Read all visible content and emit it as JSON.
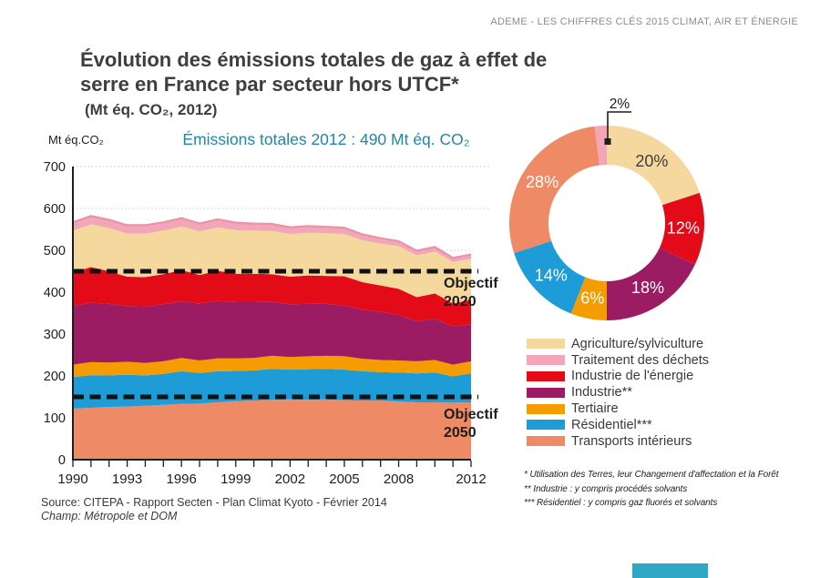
{
  "header": {
    "text": "ADEME - LES CHIFFRES CLÉS 2015 CLIMAT, AIR ET ÉNERGIE"
  },
  "title": {
    "line1": "Évolution des émissions totales de gaz à effet de",
    "line2": "serre en France par secteur hors UTCF*",
    "subtitle": "(Mt éq. CO₂, 2012)"
  },
  "area_chart": {
    "unit_label": "Mt éq.CO₂",
    "annotation_total": "Émissions totales 2012 : 490 Mt éq. CO₂"
  },
  "chart_data": [
    {
      "type": "area",
      "stacked": true,
      "title": "Évolution des émissions totales de gaz à effet de serre en France par secteur hors UTCF",
      "ylabel": "Mt éq.CO₂",
      "xlabel": "",
      "grid": true,
      "ylim": [
        0,
        700
      ],
      "yticks": [
        0,
        100,
        200,
        300,
        400,
        500,
        600,
        700
      ],
      "x_years": [
        1990,
        1991,
        1992,
        1993,
        1994,
        1995,
        1996,
        1997,
        1998,
        1999,
        2000,
        2001,
        2002,
        2003,
        2004,
        2005,
        2006,
        2007,
        2008,
        2009,
        2010,
        2011,
        2012
      ],
      "xticks": [
        1990,
        1993,
        1996,
        1999,
        2002,
        2005,
        2008,
        2012
      ],
      "total_2012": 490,
      "series": [
        {
          "name": "Transports intérieurs",
          "color": "#EF8A66",
          "values": [
            122,
            124,
            126,
            127,
            129,
            131,
            133,
            134,
            137,
            140,
            141,
            143,
            144,
            143,
            144,
            142,
            141,
            141,
            139,
            137,
            137,
            136,
            137
          ]
        },
        {
          "name": "Résidentiel",
          "color": "#1E9CD8",
          "values": [
            75,
            78,
            75,
            76,
            72,
            74,
            78,
            73,
            74,
            72,
            72,
            74,
            71,
            73,
            73,
            73,
            70,
            68,
            69,
            69,
            71,
            63,
            69
          ]
        },
        {
          "name": "Tertiaire",
          "color": "#F59C00",
          "values": [
            30,
            31,
            31,
            31,
            30,
            30,
            32,
            30,
            31,
            30,
            30,
            31,
            30,
            31,
            31,
            32,
            30,
            29,
            29,
            29,
            30,
            28,
            29
          ]
        },
        {
          "name": "Industrie",
          "color": "#9B1C62",
          "values": [
            140,
            142,
            140,
            133,
            135,
            136,
            135,
            136,
            137,
            134,
            133,
            129,
            126,
            125,
            124,
            121,
            117,
            115,
            109,
            95,
            99,
            91,
            88
          ]
        },
        {
          "name": "Industrie de l'énergie",
          "color": "#E30B17",
          "values": [
            80,
            85,
            78,
            70,
            70,
            72,
            75,
            68,
            72,
            68,
            68,
            66,
            66,
            68,
            67,
            70,
            66,
            63,
            62,
            58,
            60,
            55,
            59
          ]
        },
        {
          "name": "Agriculture/sylviculture",
          "color": "#F4D89E",
          "values": [
            100,
            102,
            103,
            103,
            104,
            104,
            104,
            104,
            104,
            104,
            103,
            103,
            102,
            102,
            102,
            101,
            100,
            100,
            102,
            100,
            100,
            99,
            98
          ]
        },
        {
          "name": "Traitement des déchets",
          "color": "#F2A6B8",
          "values": [
            20,
            20,
            20,
            20,
            20,
            20,
            20,
            19,
            19,
            18,
            17,
            17,
            16,
            16,
            15,
            15,
            14,
            13,
            12,
            11,
            11,
            10,
            10
          ]
        }
      ],
      "reference_lines": [
        {
          "value": 450,
          "label": "Objectif",
          "year": "2020"
        },
        {
          "value": 150,
          "label": "Objectif",
          "year": "2050"
        }
      ]
    },
    {
      "type": "donut",
      "start_angle_deg": 0,
      "segments": [
        {
          "label": "Agriculture/sylviculture",
          "value_pct": 20,
          "display": "20%",
          "color": "#F4D89E",
          "text_color": "#3E3E3E"
        },
        {
          "label": "Industrie de l'énergie",
          "value_pct": 12,
          "display": "12%",
          "color": "#E30B17",
          "text_color": "#FFFFFF"
        },
        {
          "label": "Industrie",
          "value_pct": 18,
          "display": "18%",
          "color": "#9B1C62",
          "text_color": "#FFFFFF"
        },
        {
          "label": "Tertiaire",
          "value_pct": 6,
          "display": "6%",
          "color": "#F59C00",
          "text_color": "#FFFFFF"
        },
        {
          "label": "Résidentiel",
          "value_pct": 14,
          "display": "14%",
          "color": "#1E9CD8",
          "text_color": "#FFFFFF"
        },
        {
          "label": "Transports intérieurs",
          "value_pct": 28,
          "display": "28%",
          "color": "#EF8A66",
          "text_color": "#FFFFFF"
        },
        {
          "label": "Traitement des déchets",
          "value_pct": 2,
          "display": "2%",
          "color": "#F2A6B8",
          "text_color": "#1D1D1B",
          "external": true
        }
      ]
    }
  ],
  "legend": {
    "items": [
      {
        "label": "Agriculture/sylviculture",
        "color": "#F4D89E"
      },
      {
        "label": "Traitement des déchets",
        "color": "#F2A6B8"
      },
      {
        "label": "Industrie de l'énergie",
        "color": "#E30B17"
      },
      {
        "label": "Industrie**",
        "color": "#9B1C62"
      },
      {
        "label": "Tertiaire",
        "color": "#F59C00"
      },
      {
        "label": "Résidentiel***",
        "color": "#1E9CD8"
      },
      {
        "label": "Transports intérieurs",
        "color": "#EF8A66"
      }
    ]
  },
  "footnotes": [
    "* Utilisation des Terres, leur Changement d'affectation et la Forêt",
    "** Industrie : y compris procédés solvants",
    "*** Résidentiel : y compris gaz fluorés et solvants"
  ],
  "source": {
    "line1": "Source: CITEPA - Rapport Secten - Plan Climat Kyoto - Février 2014",
    "line2": "Champ: Métropole et DOM"
  },
  "colors": {
    "accent_teal_text": "#1F87A9",
    "header_gray": "#8C8C8C",
    "title_gray": "#3E3E3E",
    "footer_bar": "#2FA8C5",
    "objective_line": "#111111"
  }
}
